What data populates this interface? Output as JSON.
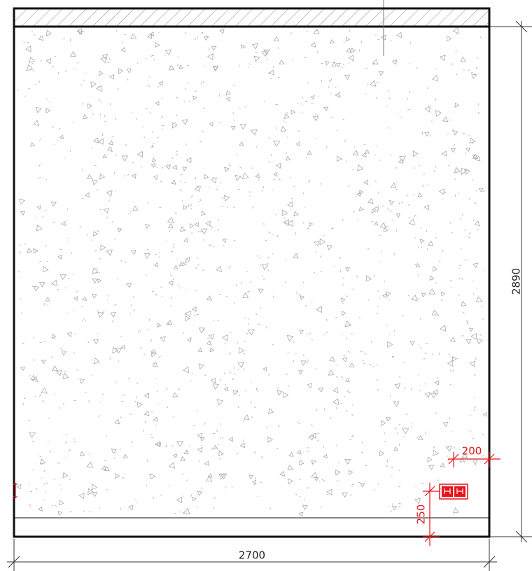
{
  "dimensions": {
    "height": "2890",
    "width": "2700"
  },
  "outlet": {
    "offset_side": "200",
    "offset_bottom": "250"
  }
}
